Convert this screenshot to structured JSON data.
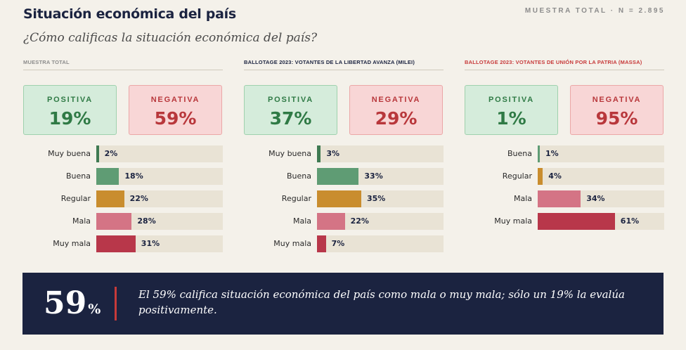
{
  "header": {
    "title": "Situación económica del país",
    "sample": "MUESTRA TOTAL · N = 2.895",
    "question": "¿Cómo calificas la situación económica del país?"
  },
  "colors": {
    "positive": "#5f9c74",
    "neutral": "#c98d2e",
    "negative_light": "#d47485",
    "negative_dark": "#b8374a",
    "navy": "#1b2340",
    "track": "#e9e3d5"
  },
  "chart_data": [
    {
      "type": "bar",
      "title": "MUESTRA TOTAL",
      "positive_label": "POSITIVA",
      "positive_value": "19%",
      "negative_label": "NEGATIVA",
      "negative_value": "59%",
      "categories": [
        "Muy buena",
        "Buena",
        "Regular",
        "Mala",
        "Muy mala"
      ],
      "values": [
        2,
        18,
        22,
        28,
        31
      ],
      "value_labels": [
        "2%",
        "18%",
        "22%",
        "28%",
        "31%"
      ],
      "colors": [
        "#3f7a52",
        "#5f9c74",
        "#c98d2e",
        "#d47485",
        "#b8374a"
      ],
      "xlim": [
        0,
        100
      ]
    },
    {
      "type": "bar",
      "title": "BALLOTAGE 2023: VOTANTES DE LA LIBERTAD AVANZA (MILEI)",
      "positive_label": "POSITIVA",
      "positive_value": "37%",
      "negative_label": "NEGATIVA",
      "negative_value": "29%",
      "categories": [
        "Muy buena",
        "Buena",
        "Regular",
        "Mala",
        "Muy mala"
      ],
      "values": [
        3,
        33,
        35,
        22,
        7
      ],
      "value_labels": [
        "3%",
        "33%",
        "35%",
        "22%",
        "7%"
      ],
      "colors": [
        "#3f7a52",
        "#5f9c74",
        "#c98d2e",
        "#d47485",
        "#b8374a"
      ],
      "xlim": [
        0,
        100
      ]
    },
    {
      "type": "bar",
      "title": "BALLOTAGE 2023: VOTANTES DE UNIÓN POR LA PATRIA (MASSA)",
      "positive_label": "POSITIVA",
      "positive_value": "1%",
      "negative_label": "NEGATIVA",
      "negative_value": "95%",
      "categories": [
        "Buena",
        "Regular",
        "Mala",
        "Muy mala"
      ],
      "values": [
        1,
        4,
        34,
        61
      ],
      "value_labels": [
        "1%",
        "4%",
        "34%",
        "61%"
      ],
      "colors": [
        "#5f9c74",
        "#c98d2e",
        "#d47485",
        "#b8374a"
      ],
      "xlim": [
        0,
        100
      ]
    }
  ],
  "banner": {
    "big_number": "59",
    "big_symbol": "%",
    "text": "El 59% califica situación económica del país como mala o muy mala; sólo un 19% la evalúa positivamente."
  }
}
